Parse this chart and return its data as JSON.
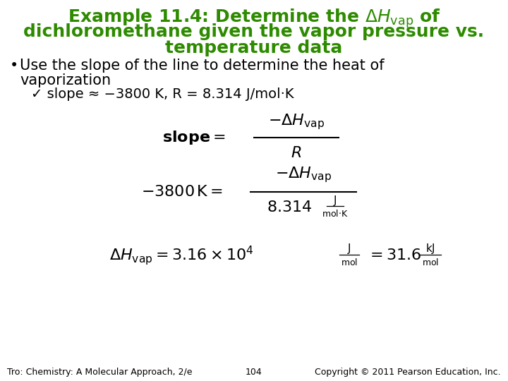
{
  "bg_color": "#ffffff",
  "title_color": "#2e8b00",
  "text_color": "#000000",
  "footer_left": "Tro: Chemistry: A Molecular Approach, 2/e",
  "footer_center": "104",
  "footer_right": "Copyright © 2011 Pearson Education, Inc.",
  "title_fontsize": 18,
  "bullet_fontsize": 15,
  "check_fontsize": 14,
  "formula_fontsize": 16,
  "footer_fontsize": 9
}
